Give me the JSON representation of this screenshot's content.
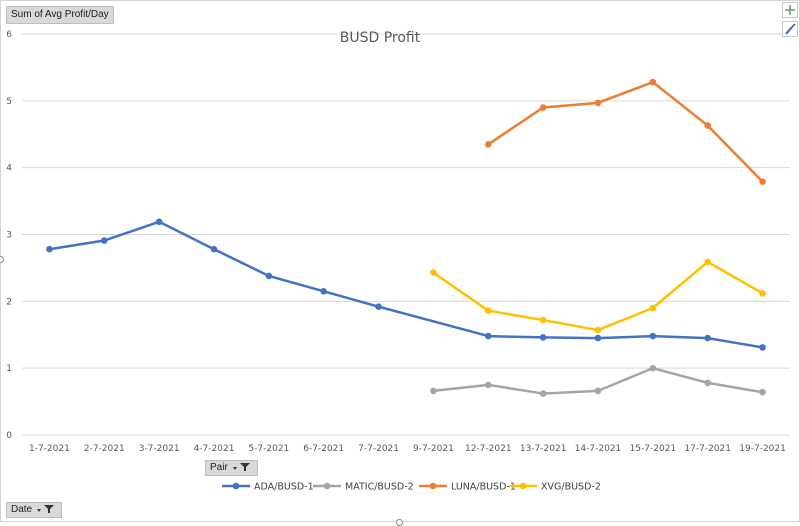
{
  "pivot": {
    "value_field": "Sum of Avg Profit/Day",
    "pair_filter": "Pair",
    "date_filter": "Date"
  },
  "chart_data": {
    "type": "line",
    "title": "BUSD Profit",
    "xlabel": "",
    "ylabel": "",
    "ylim": [
      0,
      6
    ],
    "yticks": [
      0,
      1,
      2,
      3,
      4,
      5,
      6
    ],
    "grid": true,
    "legend": "bottom",
    "categories": [
      "1-7-2021",
      "2-7-2021",
      "3-7-2021",
      "4-7-2021",
      "5-7-2021",
      "6-7-2021",
      "7-7-2021",
      "9-7-2021",
      "12-7-2021",
      "13-7-2021",
      "14-7-2021",
      "15-7-2021",
      "17-7-2021",
      "19-7-2021"
    ],
    "series": [
      {
        "name": "ADA/BUSD-1",
        "color": "#4472c4",
        "values": [
          2.78,
          2.91,
          3.19,
          2.78,
          2.38,
          2.15,
          1.92,
          null,
          1.48,
          1.46,
          1.45,
          1.48,
          1.45,
          1.31
        ]
      },
      {
        "name": "MATIC/BUSD-2",
        "color": "#a5a5a5",
        "values": [
          null,
          null,
          null,
          null,
          null,
          null,
          null,
          0.66,
          0.75,
          0.62,
          0.66,
          1.0,
          0.78,
          0.64
        ]
      },
      {
        "name": "LUNA/BUSD-1",
        "color": "#ed7d31",
        "values": [
          null,
          null,
          null,
          null,
          null,
          null,
          null,
          null,
          4.35,
          4.9,
          4.97,
          5.28,
          4.63,
          3.79
        ]
      },
      {
        "name": "XVG/BUSD-2",
        "color": "#ffc000",
        "values": [
          null,
          null,
          null,
          null,
          null,
          null,
          null,
          2.43,
          1.86,
          1.72,
          1.57,
          1.9,
          2.59,
          2.12
        ]
      }
    ]
  }
}
